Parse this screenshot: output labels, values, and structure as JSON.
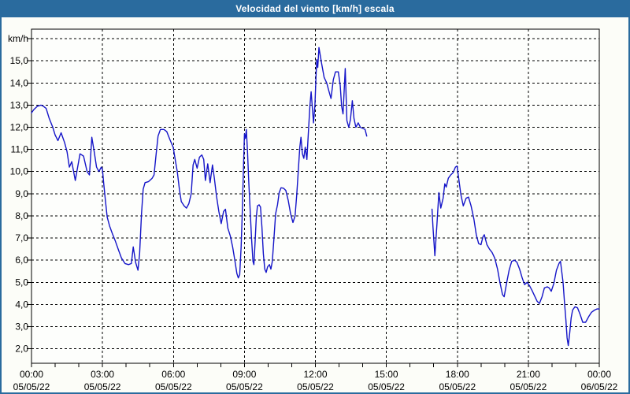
{
  "window": {
    "title": "Velocidad del viento [km/h] escala"
  },
  "colors": {
    "frame_blue": "#2a6b9e",
    "line_blue": "#1414c8",
    "background": "#fcfdf8",
    "plot_background": "#fdfefc",
    "grid_black": "#000000",
    "title_text": "#ffffff"
  },
  "chart_data": {
    "type": "line",
    "title": "Velocidad del viento [km/h] escala",
    "ylabel_unit": "km/h",
    "xlabel": "",
    "grid": "dashed",
    "legend": "none",
    "xlim_hours": [
      0,
      24
    ],
    "ylim": [
      1.35,
      16.4
    ],
    "y_gridline_values": [
      2,
      3,
      4,
      5,
      6,
      7,
      8,
      9,
      10,
      11,
      12,
      13,
      14,
      15,
      16
    ],
    "y_gridline_labels": [
      "2,0",
      "3,0",
      "4,0",
      "5,0",
      "6,0",
      "7,0",
      "8,0",
      "9,0",
      "10,0",
      "11,0",
      "12,0",
      "13,0",
      "14,0",
      "15,0",
      "km/h"
    ],
    "x_major_gridline_hours": [
      3,
      6,
      9,
      12,
      15,
      18,
      21
    ],
    "x_minor_tick_every_hours": 1,
    "x_ticks": [
      {
        "hour": 0,
        "time": "00:00",
        "date": "05/05/22"
      },
      {
        "hour": 3,
        "time": "03:00",
        "date": "05/05/22"
      },
      {
        "hour": 6,
        "time": "06:00",
        "date": "05/05/22"
      },
      {
        "hour": 9,
        "time": "09:00",
        "date": "05/05/22"
      },
      {
        "hour": 12,
        "time": "12:00",
        "date": "05/05/22"
      },
      {
        "hour": 15,
        "time": "15:00",
        "date": "05/05/22"
      },
      {
        "hour": 18,
        "time": "18:00",
        "date": "05/05/22"
      },
      {
        "hour": 21,
        "time": "21:00",
        "date": "05/05/22"
      },
      {
        "hour": 24,
        "time": "00:00",
        "date": "06/05/22"
      }
    ],
    "series": [
      {
        "name": "wind-speed-kmh",
        "color": "#1414c8",
        "segments": [
          [
            [
              0,
              12.65
            ],
            [
              0.1,
              12.8
            ],
            [
              0.25,
              12.95
            ],
            [
              0.4,
              13.0
            ],
            [
              0.5,
              12.95
            ],
            [
              0.62,
              12.85
            ],
            [
              0.75,
              12.4
            ],
            [
              0.9,
              12.0
            ],
            [
              1.0,
              11.65
            ],
            [
              1.12,
              11.4
            ],
            [
              1.25,
              11.75
            ],
            [
              1.4,
              11.3
            ],
            [
              1.5,
              10.9
            ],
            [
              1.6,
              10.2
            ],
            [
              1.7,
              10.45
            ],
            [
              1.85,
              9.6
            ],
            [
              1.95,
              10.2
            ],
            [
              2.05,
              10.8
            ],
            [
              2.2,
              10.7
            ],
            [
              2.35,
              10.0
            ],
            [
              2.45,
              9.85
            ],
            [
              2.55,
              11.55
            ],
            [
              2.65,
              10.9
            ],
            [
              2.75,
              10.2
            ],
            [
              2.85,
              10.0
            ],
            [
              2.95,
              10.2
            ],
            [
              3.0,
              10.1
            ],
            [
              3.05,
              9.5
            ],
            [
              3.12,
              8.75
            ],
            [
              3.2,
              7.95
            ],
            [
              3.3,
              7.55
            ],
            [
              3.42,
              7.2
            ],
            [
              3.55,
              6.85
            ],
            [
              3.68,
              6.45
            ],
            [
              3.8,
              6.1
            ],
            [
              3.95,
              5.85
            ],
            [
              4.1,
              5.8
            ],
            [
              4.22,
              5.85
            ],
            [
              4.3,
              6.6
            ],
            [
              4.4,
              5.9
            ],
            [
              4.5,
              5.55
            ],
            [
              4.57,
              6.3
            ],
            [
              4.65,
              8.1
            ],
            [
              4.72,
              9.2
            ],
            [
              4.8,
              9.5
            ],
            [
              4.95,
              9.55
            ],
            [
              5.1,
              9.7
            ],
            [
              5.18,
              9.85
            ],
            [
              5.27,
              10.8
            ],
            [
              5.35,
              11.6
            ],
            [
              5.45,
              11.9
            ],
            [
              5.6,
              11.9
            ],
            [
              5.72,
              11.8
            ],
            [
              5.85,
              11.45
            ],
            [
              5.99,
              11.1
            ],
            [
              6.08,
              10.5
            ],
            [
              6.16,
              10.0
            ],
            [
              6.25,
              9.2
            ],
            [
              6.33,
              8.65
            ],
            [
              6.45,
              8.45
            ],
            [
              6.55,
              8.35
            ],
            [
              6.65,
              8.55
            ],
            [
              6.75,
              9.0
            ],
            [
              6.83,
              10.3
            ],
            [
              6.9,
              10.55
            ],
            [
              7.0,
              10.15
            ],
            [
              7.1,
              10.65
            ],
            [
              7.2,
              10.75
            ],
            [
              7.28,
              10.55
            ],
            [
              7.35,
              9.6
            ],
            [
              7.45,
              10.35
            ],
            [
              7.55,
              9.5
            ],
            [
              7.65,
              10.3
            ],
            [
              7.73,
              9.7
            ],
            [
              7.82,
              8.9
            ],
            [
              7.92,
              8.2
            ],
            [
              8.02,
              7.65
            ],
            [
              8.12,
              8.2
            ],
            [
              8.2,
              8.3
            ],
            [
              8.3,
              7.45
            ],
            [
              8.4,
              7.1
            ],
            [
              8.5,
              6.6
            ],
            [
              8.6,
              5.95
            ],
            [
              8.68,
              5.4
            ],
            [
              8.74,
              5.2
            ],
            [
              8.8,
              5.35
            ],
            [
              8.86,
              6.6
            ],
            [
              8.91,
              8.2
            ],
            [
              8.96,
              10.2
            ],
            [
              9.0,
              11.7
            ],
            [
              9.04,
              11.5
            ],
            [
              9.08,
              11.9
            ],
            [
              9.13,
              10.9
            ],
            [
              9.18,
              9.6
            ],
            [
              9.24,
              8.3
            ],
            [
              9.3,
              7.0
            ],
            [
              9.36,
              5.95
            ],
            [
              9.4,
              5.8
            ],
            [
              9.45,
              6.8
            ],
            [
              9.5,
              7.9
            ],
            [
              9.55,
              8.45
            ],
            [
              9.62,
              8.5
            ],
            [
              9.68,
              8.4
            ],
            [
              9.74,
              7.5
            ],
            [
              9.8,
              6.3
            ],
            [
              9.86,
              5.6
            ],
            [
              9.92,
              5.45
            ],
            [
              9.98,
              5.7
            ],
            [
              10.06,
              5.8
            ],
            [
              10.12,
              5.6
            ],
            [
              10.18,
              5.95
            ],
            [
              10.25,
              7.0
            ],
            [
              10.32,
              8.1
            ],
            [
              10.4,
              8.5
            ],
            [
              10.47,
              9.05
            ],
            [
              10.55,
              9.27
            ],
            [
              10.65,
              9.25
            ],
            [
              10.75,
              9.15
            ],
            [
              10.85,
              8.7
            ],
            [
              10.95,
              8.1
            ],
            [
              11.05,
              7.7
            ],
            [
              11.14,
              8.0
            ],
            [
              11.21,
              8.95
            ],
            [
              11.28,
              10.1
            ],
            [
              11.34,
              11.1
            ],
            [
              11.39,
              11.55
            ],
            [
              11.45,
              10.8
            ],
            [
              11.51,
              10.6
            ],
            [
              11.57,
              11.1
            ],
            [
              11.64,
              10.55
            ],
            [
              11.71,
              11.9
            ],
            [
              11.77,
              13.0
            ],
            [
              11.82,
              13.6
            ],
            [
              11.87,
              12.9
            ],
            [
              11.92,
              12.2
            ],
            [
              11.98,
              13.0
            ],
            [
              12.03,
              14.4
            ],
            [
              12.06,
              15.05
            ],
            [
              12.1,
              14.7
            ],
            [
              12.15,
              15.6
            ],
            [
              12.26,
              14.9
            ],
            [
              12.37,
              14.25
            ],
            [
              12.48,
              14.0
            ],
            [
              12.58,
              13.6
            ],
            [
              12.66,
              13.3
            ],
            [
              12.76,
              14.15
            ],
            [
              12.85,
              14.5
            ],
            [
              12.97,
              14.5
            ],
            [
              13.05,
              13.9
            ],
            [
              13.11,
              12.95
            ],
            [
              13.17,
              12.6
            ],
            [
              13.26,
              14.65
            ],
            [
              13.33,
              12.3
            ],
            [
              13.41,
              12.0
            ],
            [
              13.48,
              12.35
            ],
            [
              13.56,
              13.2
            ],
            [
              13.63,
              12.4
            ],
            [
              13.71,
              12.0
            ],
            [
              13.81,
              12.2
            ],
            [
              13.9,
              12.0
            ],
            [
              14.0,
              11.95
            ],
            [
              14.1,
              11.9
            ],
            [
              14.17,
              11.6
            ]
          ],
          [
            [
              16.93,
              8.3
            ],
            [
              16.97,
              7.5
            ],
            [
              17.05,
              6.2
            ],
            [
              17.14,
              7.65
            ],
            [
              17.22,
              9.05
            ],
            [
              17.3,
              8.35
            ],
            [
              17.4,
              8.8
            ],
            [
              17.47,
              9.45
            ],
            [
              17.53,
              9.3
            ],
            [
              17.62,
              9.7
            ],
            [
              17.72,
              9.85
            ],
            [
              17.82,
              9.95
            ],
            [
              17.92,
              10.2
            ],
            [
              17.99,
              10.25
            ],
            [
              18.08,
              9.5
            ],
            [
              18.15,
              8.95
            ],
            [
              18.25,
              8.45
            ],
            [
              18.37,
              8.8
            ],
            [
              18.47,
              8.85
            ],
            [
              18.58,
              8.45
            ],
            [
              18.7,
              7.85
            ],
            [
              18.8,
              7.15
            ],
            [
              18.9,
              6.75
            ],
            [
              19.0,
              6.7
            ],
            [
              19.08,
              7.05
            ],
            [
              19.14,
              7.15
            ],
            [
              19.25,
              6.7
            ],
            [
              19.36,
              6.5
            ],
            [
              19.47,
              6.35
            ],
            [
              19.58,
              6.1
            ],
            [
              19.7,
              5.6
            ],
            [
              19.8,
              5.0
            ],
            [
              19.91,
              4.45
            ],
            [
              19.98,
              4.35
            ],
            [
              20.08,
              4.95
            ],
            [
              20.19,
              5.55
            ],
            [
              20.3,
              5.95
            ],
            [
              20.42,
              6.0
            ],
            [
              20.52,
              5.9
            ],
            [
              20.63,
              5.6
            ],
            [
              20.74,
              5.2
            ],
            [
              20.84,
              4.9
            ],
            [
              20.95,
              5.0
            ],
            [
              21.05,
              4.85
            ],
            [
              21.15,
              4.65
            ],
            [
              21.26,
              4.4
            ],
            [
              21.37,
              4.15
            ],
            [
              21.47,
              4.05
            ],
            [
              21.58,
              4.35
            ],
            [
              21.68,
              4.75
            ],
            [
              21.8,
              4.8
            ],
            [
              21.88,
              4.75
            ],
            [
              21.97,
              4.6
            ],
            [
              22.08,
              4.95
            ],
            [
              22.19,
              5.55
            ],
            [
              22.3,
              5.86
            ],
            [
              22.36,
              5.95
            ],
            [
              22.47,
              5.0
            ],
            [
              22.53,
              4.1
            ],
            [
              22.59,
              3.3
            ],
            [
              22.64,
              2.5
            ],
            [
              22.69,
              2.15
            ],
            [
              22.75,
              2.7
            ],
            [
              22.81,
              3.4
            ],
            [
              22.87,
              3.75
            ],
            [
              22.97,
              3.9
            ],
            [
              23.08,
              3.85
            ],
            [
              23.19,
              3.55
            ],
            [
              23.3,
              3.2
            ],
            [
              23.42,
              3.2
            ],
            [
              23.55,
              3.45
            ],
            [
              23.67,
              3.65
            ],
            [
              23.8,
              3.75
            ],
            [
              23.9,
              3.8
            ],
            [
              24.0,
              3.8
            ]
          ]
        ]
      }
    ]
  }
}
